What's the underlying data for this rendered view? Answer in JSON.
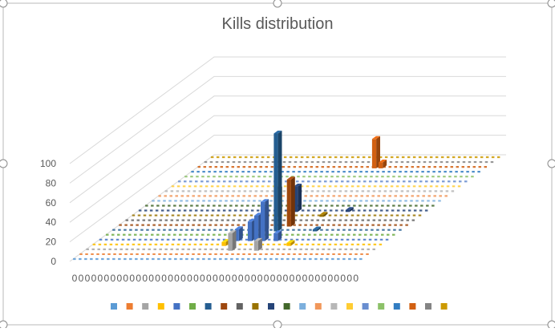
{
  "chart_data": {
    "type": "bar",
    "subtype": "3d-column",
    "title": "Kills distribution",
    "xlabel": "",
    "ylabel": "",
    "ylim": [
      0,
      100
    ],
    "yticks": [
      0,
      20,
      40,
      60,
      80,
      100
    ],
    "grid": true,
    "legend_position": "bottom",
    "legend_entries_shown_as_swatches_only": true,
    "categories": [
      "0",
      "0",
      "0",
      "0",
      "0",
      "0",
      "0",
      "0",
      "0",
      "0",
      "0",
      "0",
      "0",
      "0",
      "0",
      "0",
      "0",
      "0",
      "0",
      "0",
      "0",
      "0",
      "0",
      "0",
      "0",
      "0",
      "0",
      "0",
      "0",
      "0",
      "0",
      "0",
      "0",
      "0",
      "0",
      "0",
      "0",
      "0",
      "0",
      "0",
      "0",
      "0",
      "0",
      "0",
      "0"
    ],
    "series_colors": [
      "#5b9bd5",
      "#ed7d31",
      "#a5a5a5",
      "#ffc000",
      "#4472c4",
      "#70ad47",
      "#255e91",
      "#9e480e",
      "#636363",
      "#997300",
      "#264478",
      "#43682b",
      "#7cafdd",
      "#f1975a",
      "#b7b7b7",
      "#ffcd33",
      "#698ed0",
      "#8cc168",
      "#327dc2",
      "#d26012",
      "#848484",
      "#cc9a00"
    ],
    "bars": [
      {
        "category": 20,
        "series": 3,
        "value": 4
      },
      {
        "category": 21,
        "series": 4,
        "value": 12
      },
      {
        "category": 22,
        "series": 2,
        "value": 18
      },
      {
        "category": 22,
        "series": 9,
        "value": 28
      },
      {
        "category": 23,
        "series": 4,
        "value": 20
      },
      {
        "category": 23,
        "series": 6,
        "value": 22
      },
      {
        "category": 24,
        "series": 4,
        "value": 26
      },
      {
        "category": 24,
        "series": 10,
        "value": 26
      },
      {
        "category": 25,
        "series": 6,
        "value": 100
      },
      {
        "category": 25,
        "series": 4,
        "value": 40
      },
      {
        "category": 26,
        "series": 7,
        "value": 48
      },
      {
        "category": 26,
        "series": 2,
        "value": 10
      },
      {
        "category": 27,
        "series": 19,
        "value": 30
      },
      {
        "category": 27,
        "series": 4,
        "value": 8
      },
      {
        "category": 28,
        "series": 19,
        "value": 6
      },
      {
        "category": 29,
        "series": 9,
        "value": 2
      },
      {
        "category": 30,
        "series": 3,
        "value": 3
      },
      {
        "category": 31,
        "series": 6,
        "value": 2
      },
      {
        "category": 32,
        "series": 10,
        "value": 2
      }
    ]
  }
}
